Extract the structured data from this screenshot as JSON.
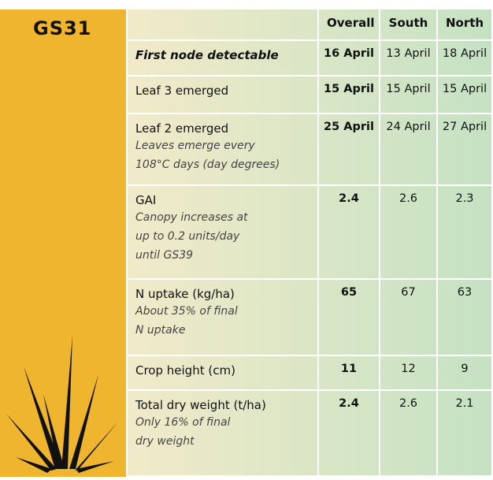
{
  "side": {
    "title": "GS31"
  },
  "table": {
    "header": [
      "Overall",
      "South",
      "North"
    ],
    "rows": [
      {
        "label": "First node detectable",
        "values": [
          "16 April",
          "13 April",
          "18 April"
        ]
      },
      {
        "label": "Leaf 3 emerged",
        "values": [
          "15 April",
          "15 April",
          "15 April"
        ]
      },
      {
        "label": "Leaf 2 emerged",
        "note": [
          "Leaves emerge every",
          "108°C days (day degrees)"
        ],
        "values": [
          "25 April",
          "24 April",
          "27 April"
        ]
      },
      {
        "label": "GAI",
        "note": [
          "Canopy increases at",
          "up to 0.2 units/day",
          "until GS39"
        ],
        "values": [
          "2.4",
          "2.6",
          "2.3"
        ]
      },
      {
        "label": "N uptake (kg/ha)",
        "note": [
          "About 35% of final",
          "N uptake"
        ],
        "values": [
          "65",
          "67",
          "63"
        ]
      },
      {
        "label": "Crop height (cm)",
        "values": [
          "11",
          "12",
          "9"
        ]
      },
      {
        "label": "Total dry weight (t/ha)",
        "note": [
          "Only 16% of final",
          "dry weight"
        ],
        "values": [
          "2.4",
          "2.6",
          "2.1"
        ]
      }
    ]
  }
}
